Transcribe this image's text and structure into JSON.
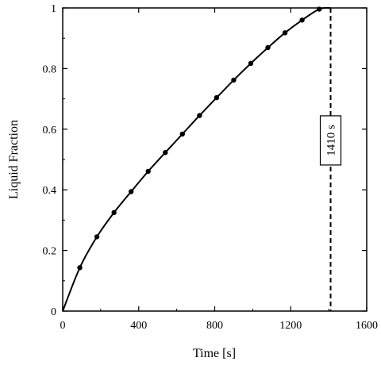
{
  "chart_data": {
    "type": "line",
    "xlabel": "Time [s]",
    "ylabel": "Liquid Fraction",
    "xlim": [
      0,
      1600
    ],
    "ylim": [
      0,
      1
    ],
    "xticks": [
      0,
      400,
      800,
      1200,
      1600
    ],
    "yticks": [
      0,
      0.2,
      0.4,
      0.6,
      0.8,
      1
    ],
    "xtick_labels": [
      "0",
      "400",
      "800",
      "1200",
      "1600"
    ],
    "ytick_labels": [
      "0",
      "0.2",
      "0.4",
      "0.6",
      "0.8",
      "1"
    ],
    "grid": false,
    "legend": "none",
    "series": [
      {
        "x": [
          0,
          90,
          180,
          270,
          360,
          450,
          540,
          630,
          720,
          810,
          900,
          990,
          1080,
          1170,
          1260,
          1350,
          1410
        ],
        "y": [
          0,
          0.143,
          0.245,
          0.325,
          0.394,
          0.461,
          0.523,
          0.584,
          0.645,
          0.704,
          0.762,
          0.817,
          0.869,
          0.918,
          0.96,
          0.996,
          1.0
        ],
        "markers": [
          90,
          180,
          270,
          360,
          450,
          540,
          630,
          720,
          810,
          900,
          990,
          1080,
          1170,
          1260,
          1350
        ],
        "color": "#000000"
      }
    ],
    "annotation": {
      "type": "vertical-dashed-line",
      "x": 1410,
      "label": "1410 s"
    }
  }
}
